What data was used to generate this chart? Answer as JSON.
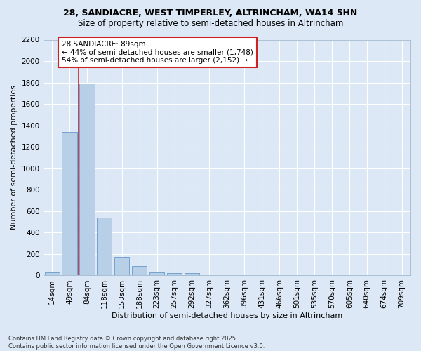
{
  "title_line1": "28, SANDIACRE, WEST TIMPERLEY, ALTRINCHAM, WA14 5HN",
  "title_line2": "Size of property relative to semi-detached houses in Altrincham",
  "xlabel": "Distribution of semi-detached houses by size in Altrincham",
  "ylabel": "Number of semi-detached properties",
  "categories": [
    "14sqm",
    "49sqm",
    "84sqm",
    "118sqm",
    "153sqm",
    "188sqm",
    "223sqm",
    "257sqm",
    "292sqm",
    "327sqm",
    "362sqm",
    "396sqm",
    "431sqm",
    "466sqm",
    "501sqm",
    "535sqm",
    "570sqm",
    "605sqm",
    "640sqm",
    "674sqm",
    "709sqm"
  ],
  "values": [
    28,
    1340,
    1790,
    540,
    170,
    85,
    30,
    20,
    20,
    5,
    0,
    0,
    0,
    0,
    0,
    0,
    0,
    0,
    0,
    0,
    0
  ],
  "bar_color": "#b8cfe8",
  "bar_edge_color": "#6699cc",
  "property_bin_index": 2,
  "property_label": "28 SANDIACRE: 89sqm",
  "annotation_line1": "← 44% of semi-detached houses are smaller (1,748)",
  "annotation_line2": "54% of semi-detached houses are larger (2,152) →",
  "line_color": "#cc2222",
  "box_edge_color": "#cc2222",
  "ylim_max": 2200,
  "ytick_step": 200,
  "bg_color": "#dce8f5",
  "plot_bg_color": "#dce8f5",
  "grid_color": "#ffffff",
  "title_fontsize": 9,
  "subtitle_fontsize": 8.5,
  "axis_label_fontsize": 8,
  "tick_fontsize": 7.5,
  "annot_fontsize": 7.5,
  "footer_fontsize": 6,
  "footer": "Contains HM Land Registry data © Crown copyright and database right 2025.\nContains public sector information licensed under the Open Government Licence v3.0."
}
